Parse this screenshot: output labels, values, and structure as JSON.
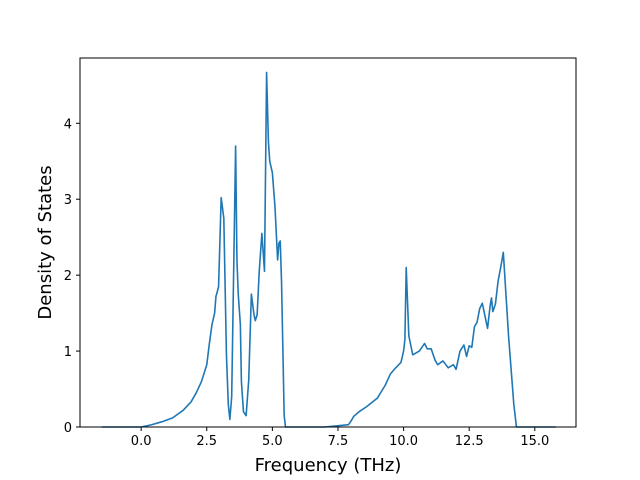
{
  "chart_data": {
    "type": "line",
    "title": "",
    "xlabel": "Frequency (THz)",
    "ylabel": "Density of States",
    "xlim": [
      -2.33,
      16.57
    ],
    "ylim": [
      0,
      4.86
    ],
    "grid": false,
    "x_ticks": [
      0.0,
      2.5,
      5.0,
      7.5,
      10.0,
      12.5,
      15.0
    ],
    "x_tick_labels": [
      "0.0",
      "2.5",
      "5.0",
      "7.5",
      "10.0",
      "12.5",
      "15.0"
    ],
    "y_ticks": [
      0,
      1,
      2,
      3,
      4
    ],
    "y_tick_labels": [
      "0",
      "1",
      "2",
      "3",
      "4"
    ],
    "series": [
      {
        "color": "#1f77b4",
        "x": [
          -1.5,
          -1.0,
          -0.5,
          0.0,
          0.4,
          0.8,
          1.2,
          1.6,
          1.9,
          2.1,
          2.3,
          2.5,
          2.6,
          2.7,
          2.8,
          2.85,
          2.9,
          2.95,
          3.05,
          3.15,
          3.25,
          3.32,
          3.38,
          3.45,
          3.55,
          3.6,
          3.65,
          3.7,
          3.78,
          3.82,
          3.9,
          4.0,
          4.1,
          4.2,
          4.3,
          4.35,
          4.42,
          4.5,
          4.6,
          4.7,
          4.78,
          4.85,
          4.9,
          5.0,
          5.1,
          5.2,
          5.25,
          5.3,
          5.35,
          5.45,
          5.5,
          5.6,
          6.0,
          7.0,
          7.9,
          8.0,
          8.1,
          8.3,
          8.6,
          9.0,
          9.3,
          9.5,
          9.7,
          9.9,
          10.0,
          10.05,
          10.1,
          10.2,
          10.35,
          10.6,
          10.8,
          10.9,
          11.05,
          11.2,
          11.3,
          11.5,
          11.7,
          11.9,
          12.0,
          12.15,
          12.3,
          12.4,
          12.5,
          12.6,
          12.7,
          12.8,
          12.9,
          13.0,
          13.2,
          13.3,
          13.35,
          13.4,
          13.5,
          13.6,
          13.7,
          13.8,
          13.9,
          14.0,
          14.1,
          14.2,
          14.3,
          14.4,
          14.5,
          15.0,
          15.8
        ],
        "y": [
          0,
          0,
          0,
          0,
          0.03,
          0.07,
          0.12,
          0.22,
          0.33,
          0.45,
          0.6,
          0.82,
          1.1,
          1.35,
          1.5,
          1.72,
          1.78,
          1.85,
          3.02,
          2.75,
          0.95,
          0.3,
          0.1,
          0.4,
          2.6,
          3.7,
          2.2,
          1.75,
          1.35,
          0.6,
          0.2,
          0.15,
          0.62,
          1.75,
          1.48,
          1.4,
          1.48,
          2.05,
          2.55,
          2.05,
          4.67,
          3.75,
          3.5,
          3.35,
          2.9,
          2.2,
          2.42,
          2.45,
          1.9,
          0.15,
          0,
          0,
          0,
          0,
          0.03,
          0.08,
          0.14,
          0.2,
          0.27,
          0.38,
          0.55,
          0.7,
          0.78,
          0.85,
          1.0,
          1.15,
          2.1,
          1.2,
          0.95,
          1.0,
          1.1,
          1.03,
          1.03,
          0.88,
          0.82,
          0.87,
          0.78,
          0.82,
          0.76,
          1.0,
          1.08,
          0.93,
          1.07,
          1.05,
          1.32,
          1.38,
          1.56,
          1.63,
          1.3,
          1.6,
          1.7,
          1.52,
          1.62,
          1.92,
          2.1,
          2.3,
          1.75,
          1.2,
          0.75,
          0.3,
          0,
          0,
          0,
          0,
          0
        ]
      }
    ]
  }
}
